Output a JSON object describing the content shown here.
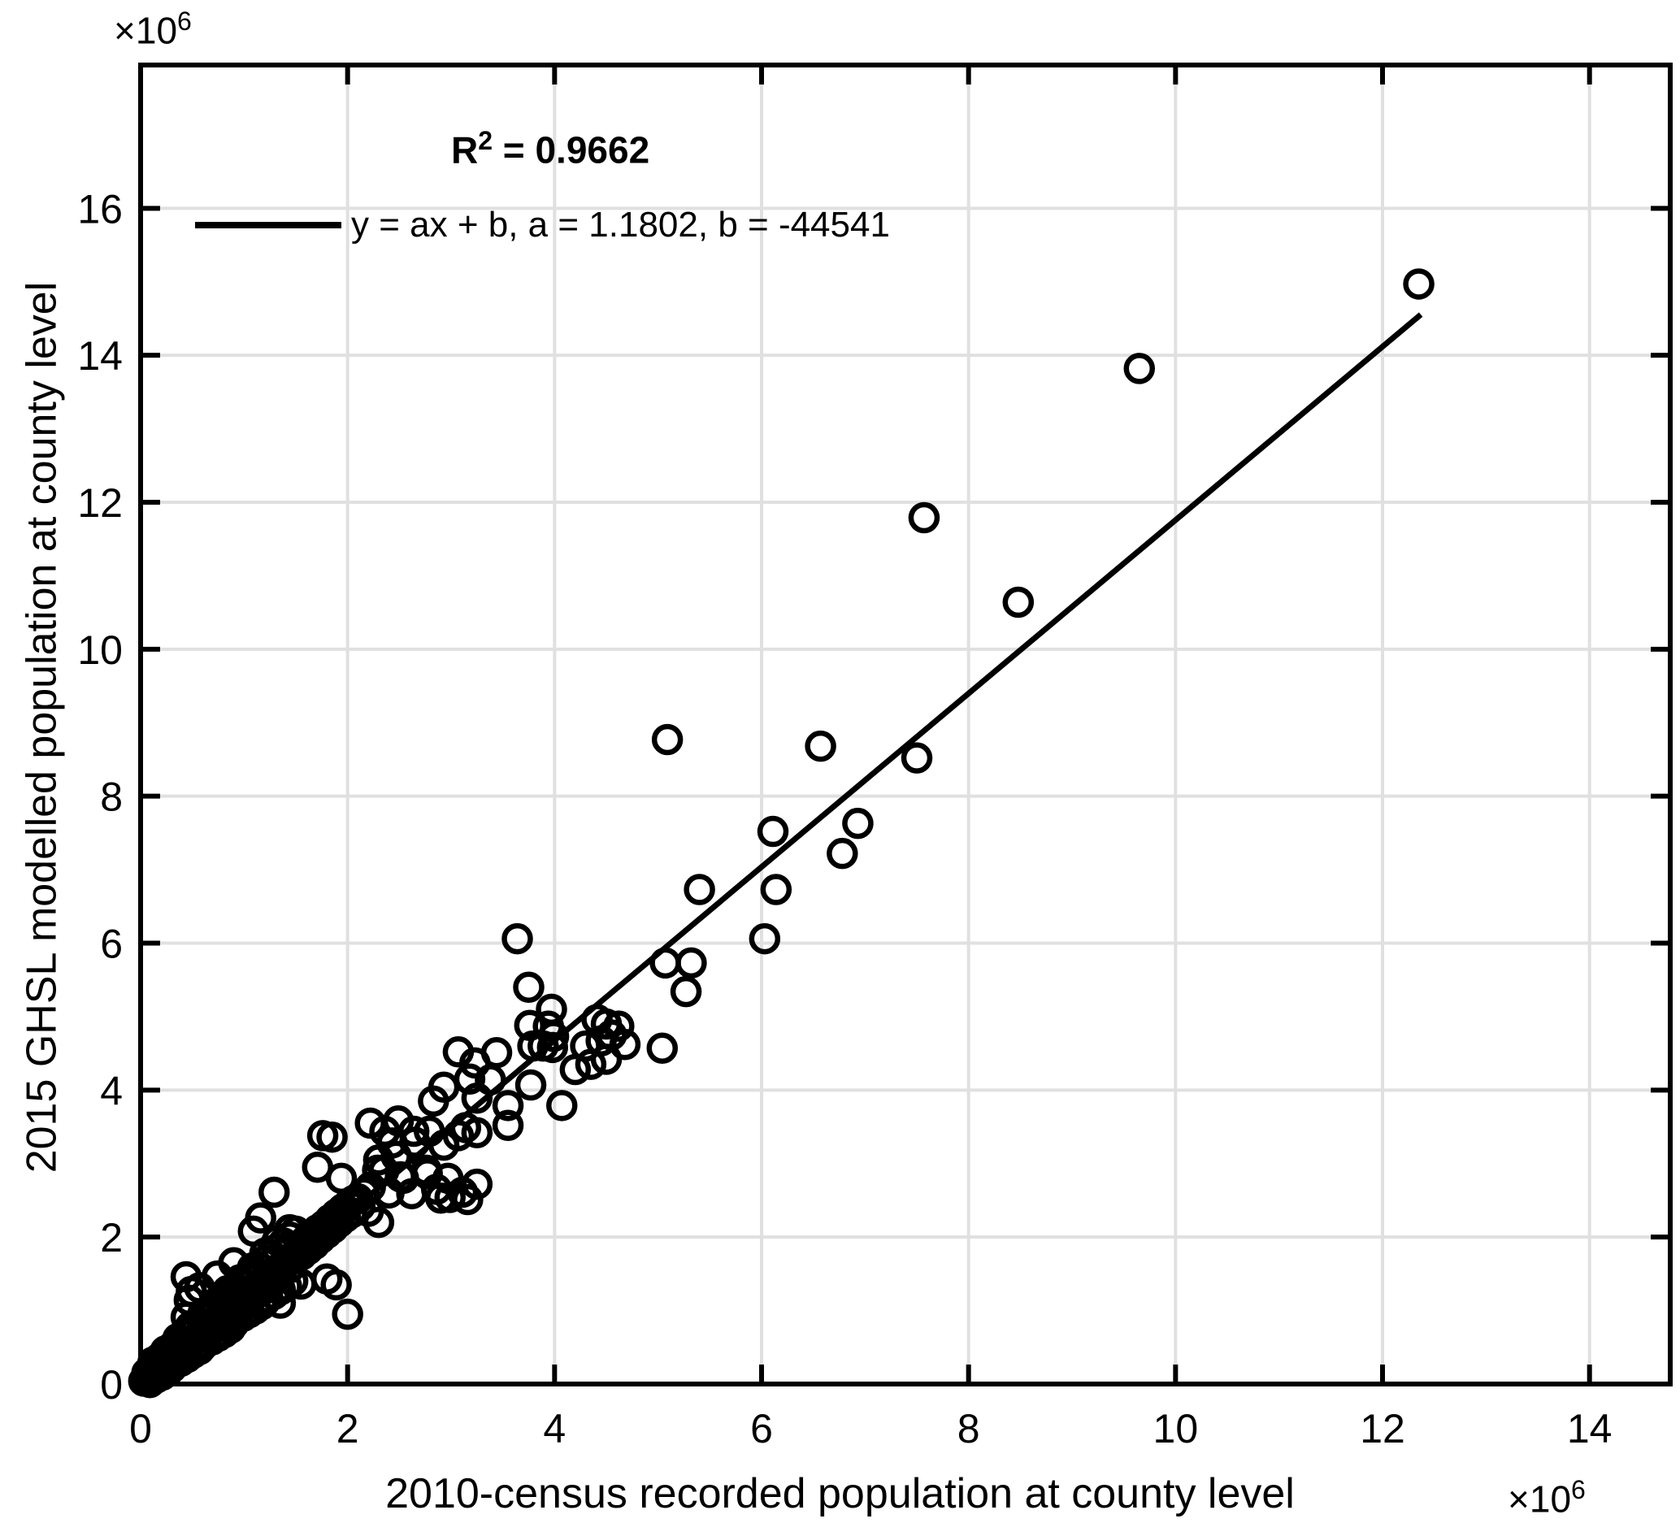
{
  "colors": {
    "background": "#ffffff",
    "axis": "#000000",
    "grid": "#e0e0e0",
    "marker": "#000000",
    "fit_line": "#000000",
    "text": "#000000"
  },
  "chart_data": {
    "type": "scatter",
    "xlabel": "2010-census recorded population at county level",
    "ylabel": "2015 GHSL modelled population at county level",
    "x_exponent": {
      "base": "×10",
      "sup": "6"
    },
    "y_exponent": {
      "base": "×10",
      "sup": "6"
    },
    "annotation_r2": {
      "base": "R",
      "sup": "2",
      "rest": " = 0.9662"
    },
    "legend_entry": "y = ax + b, a = 1.1802, b = -44541",
    "x_ticks": [
      0,
      2,
      4,
      6,
      8,
      10,
      12,
      14
    ],
    "y_ticks": [
      0,
      2,
      4,
      6,
      8,
      10,
      12,
      14,
      16
    ],
    "xlim": [
      0,
      14.78
    ],
    "ylim": [
      0,
      17.95
    ],
    "units_multiplier": 1000000,
    "grid": true,
    "legend_position": "top-left-inside",
    "fit_line": {
      "a": 1.1802,
      "b": -44541,
      "b_plot_units": -0.0445,
      "x_start": 0.05,
      "x_end": 12.37
    },
    "points": [
      [
        12.35,
        14.97
      ],
      [
        9.65,
        13.82
      ],
      [
        7.57,
        11.79
      ],
      [
        8.48,
        10.64
      ],
      [
        5.09,
        8.77
      ],
      [
        6.57,
        8.68
      ],
      [
        7.5,
        8.52
      ],
      [
        6.93,
        7.63
      ],
      [
        6.11,
        7.52
      ],
      [
        6.78,
        7.22
      ],
      [
        5.4,
        6.73
      ],
      [
        6.14,
        6.73
      ],
      [
        6.03,
        6.06
      ],
      [
        3.64,
        6.06
      ],
      [
        5.07,
        5.73
      ],
      [
        5.32,
        5.73
      ],
      [
        5.27,
        5.34
      ],
      [
        3.75,
        5.4
      ],
      [
        3.97,
        5.1
      ],
      [
        4.41,
        4.96
      ],
      [
        3.94,
        4.87
      ],
      [
        3.76,
        4.88
      ],
      [
        4.62,
        4.87
      ],
      [
        3.99,
        4.73
      ],
      [
        4.55,
        4.75
      ],
      [
        4.68,
        4.62
      ],
      [
        4.3,
        4.6
      ],
      [
        3.79,
        4.6
      ],
      [
        3.89,
        4.6
      ],
      [
        4.45,
        4.67
      ],
      [
        3.98,
        4.58
      ],
      [
        5.04,
        4.57
      ],
      [
        3.44,
        4.51
      ],
      [
        3.07,
        4.52
      ],
      [
        4.5,
        4.42
      ],
      [
        3.38,
        4.14
      ],
      [
        4.2,
        4.28
      ],
      [
        3.23,
        4.37
      ],
      [
        3.18,
        4.15
      ],
      [
        2.93,
        4.04
      ],
      [
        3.77,
        4.07
      ],
      [
        4.07,
        3.79
      ],
      [
        3.55,
        3.79
      ],
      [
        2.83,
        3.85
      ],
      [
        3.25,
        3.89
      ],
      [
        4.35,
        4.35
      ],
      [
        4.5,
        4.9
      ],
      [
        2.22,
        3.55
      ],
      [
        2.49,
        3.58
      ],
      [
        3.55,
        3.52
      ],
      [
        3.14,
        3.49
      ],
      [
        2.36,
        3.44
      ],
      [
        2.64,
        3.44
      ],
      [
        2.79,
        3.44
      ],
      [
        3.07,
        3.38
      ],
      [
        3.25,
        3.42
      ],
      [
        2.43,
        3.28
      ],
      [
        2.93,
        3.25
      ],
      [
        2.65,
        3.29
      ],
      [
        2.3,
        3.05
      ],
      [
        2.47,
        3.1
      ],
      [
        2.29,
        2.91
      ],
      [
        2.76,
        2.91
      ],
      [
        2.51,
        2.82
      ],
      [
        2.54,
        2.8
      ],
      [
        2.97,
        2.8
      ],
      [
        2.77,
        2.86
      ],
      [
        2.86,
        2.65
      ],
      [
        2.62,
        2.59
      ],
      [
        2.9,
        2.53
      ],
      [
        2.99,
        2.54
      ],
      [
        3.16,
        2.51
      ],
      [
        3.11,
        2.61
      ],
      [
        3.25,
        2.72
      ],
      [
        2.06,
        2.5
      ],
      [
        2.12,
        2.42
      ],
      [
        1.76,
        3.38
      ],
      [
        1.85,
        3.36
      ],
      [
        1.71,
        2.95
      ],
      [
        1.94,
        2.8
      ],
      [
        1.29,
        2.61
      ],
      [
        1.16,
        2.26
      ],
      [
        1.09,
        2.08
      ],
      [
        0.44,
        1.46
      ],
      [
        0.49,
        1.26
      ],
      [
        1.8,
        1.43
      ],
      [
        2.0,
        0.95
      ],
      [
        1.89,
        1.35
      ],
      [
        0.47,
        1.14
      ],
      [
        0.57,
        1.31
      ],
      [
        0.44,
        0.91
      ],
      [
        0.9,
        1.65
      ],
      [
        0.74,
        1.47
      ],
      [
        1.55,
        1.36
      ],
      [
        1.35,
        1.1
      ],
      [
        2.35,
        2.9
      ],
      [
        1.53,
        1.85
      ],
      [
        1.56,
        1.76
      ],
      [
        1.59,
        1.95
      ],
      [
        1.62,
        1.83
      ],
      [
        1.65,
        2.02
      ],
      [
        1.68,
        1.9
      ],
      [
        1.71,
        2.1
      ],
      [
        1.74,
        1.98
      ],
      [
        1.77,
        2.16
      ],
      [
        1.8,
        2.05
      ],
      [
        1.83,
        2.24
      ],
      [
        1.86,
        2.12
      ],
      [
        1.89,
        2.31
      ],
      [
        1.92,
        2.2
      ],
      [
        1.95,
        2.38
      ],
      [
        1.98,
        2.27
      ],
      [
        2.01,
        2.45
      ],
      [
        2.04,
        2.33
      ],
      [
        2.1,
        2.52
      ],
      [
        2.16,
        2.6
      ],
      [
        2.22,
        2.68
      ],
      [
        2.3,
        2.2
      ],
      [
        2.4,
        2.6
      ],
      [
        2.2,
        2.35
      ],
      [
        0.03,
        0.04
      ],
      [
        0.06,
        0.07
      ],
      [
        0.06,
        0.15
      ],
      [
        0.09,
        0.11
      ],
      [
        0.09,
        0.02
      ],
      [
        0.12,
        0.14
      ],
      [
        0.12,
        0.24
      ],
      [
        0.15,
        0.18
      ],
      [
        0.15,
        0.08
      ],
      [
        0.15,
        0.3
      ],
      [
        0.18,
        0.21
      ],
      [
        0.18,
        0.35
      ],
      [
        0.21,
        0.25
      ],
      [
        0.21,
        0.12
      ],
      [
        0.24,
        0.28
      ],
      [
        0.24,
        0.42
      ],
      [
        0.27,
        0.32
      ],
      [
        0.27,
        0.18
      ],
      [
        0.3,
        0.35
      ],
      [
        0.3,
        0.5
      ],
      [
        0.3,
        0.22
      ],
      [
        0.33,
        0.39
      ],
      [
        0.33,
        0.27
      ],
      [
        0.36,
        0.42
      ],
      [
        0.36,
        0.57
      ],
      [
        0.39,
        0.46
      ],
      [
        0.39,
        0.31
      ],
      [
        0.42,
        0.5
      ],
      [
        0.42,
        0.67
      ],
      [
        0.45,
        0.53
      ],
      [
        0.45,
        0.36
      ],
      [
        0.48,
        0.57
      ],
      [
        0.48,
        0.73
      ],
      [
        0.51,
        0.6
      ],
      [
        0.51,
        0.42
      ],
      [
        0.54,
        0.64
      ],
      [
        0.54,
        0.81
      ],
      [
        0.57,
        0.67
      ],
      [
        0.57,
        0.47
      ],
      [
        0.6,
        0.71
      ],
      [
        0.6,
        0.9
      ],
      [
        0.6,
        0.52
      ],
      [
        0.63,
        0.74
      ],
      [
        0.63,
        0.56
      ],
      [
        0.66,
        0.78
      ],
      [
        0.66,
        0.97
      ],
      [
        0.69,
        0.81
      ],
      [
        0.69,
        0.6
      ],
      [
        0.72,
        0.85
      ],
      [
        0.72,
        1.04
      ],
      [
        0.75,
        0.89
      ],
      [
        0.75,
        0.65
      ],
      [
        0.78,
        0.92
      ],
      [
        0.78,
        1.12
      ],
      [
        0.81,
        0.96
      ],
      [
        0.81,
        0.7
      ],
      [
        0.84,
        0.99
      ],
      [
        0.84,
        1.2
      ],
      [
        0.87,
        1.03
      ],
      [
        0.87,
        0.76
      ],
      [
        0.9,
        1.06
      ],
      [
        0.9,
        1.28
      ],
      [
        0.9,
        0.82
      ],
      [
        0.93,
        1.1
      ],
      [
        0.93,
        0.88
      ],
      [
        0.96,
        1.13
      ],
      [
        0.96,
        1.36
      ],
      [
        0.99,
        1.17
      ],
      [
        0.99,
        0.92
      ],
      [
        1.02,
        1.2
      ],
      [
        1.02,
        1.44
      ],
      [
        1.05,
        1.24
      ],
      [
        1.05,
        0.97
      ],
      [
        1.08,
        1.27
      ],
      [
        1.08,
        1.52
      ],
      [
        1.11,
        1.31
      ],
      [
        1.11,
        1.02
      ],
      [
        1.14,
        1.35
      ],
      [
        1.14,
        1.6
      ],
      [
        1.17,
        1.38
      ],
      [
        1.17,
        1.08
      ],
      [
        1.2,
        1.42
      ],
      [
        1.2,
        1.68
      ],
      [
        1.2,
        1.12
      ],
      [
        1.23,
        1.45
      ],
      [
        1.23,
        1.17
      ],
      [
        1.26,
        1.49
      ],
      [
        1.26,
        1.76
      ],
      [
        1.29,
        1.52
      ],
      [
        1.29,
        1.22
      ],
      [
        1.32,
        1.56
      ],
      [
        1.32,
        1.84
      ],
      [
        1.35,
        1.59
      ],
      [
        1.35,
        1.28
      ],
      [
        1.38,
        1.63
      ],
      [
        1.38,
        1.92
      ],
      [
        1.41,
        1.66
      ],
      [
        1.41,
        1.33
      ],
      [
        1.44,
        1.7
      ],
      [
        1.44,
        2.0
      ],
      [
        1.47,
        1.73
      ],
      [
        1.47,
        1.4
      ],
      [
        1.5,
        1.77
      ],
      [
        1.5,
        2.08
      ],
      [
        0.09,
        0.06
      ],
      [
        0.18,
        0.13
      ],
      [
        0.27,
        0.22
      ],
      [
        0.36,
        0.3
      ],
      [
        0.45,
        0.44
      ],
      [
        0.54,
        0.52
      ],
      [
        0.63,
        0.65
      ],
      [
        0.72,
        0.76
      ],
      [
        0.81,
        0.86
      ],
      [
        0.9,
        0.96
      ],
      [
        0.99,
        1.05
      ],
      [
        1.08,
        1.18
      ],
      [
        1.17,
        1.27
      ],
      [
        1.26,
        1.37
      ],
      [
        1.35,
        1.48
      ],
      [
        1.44,
        1.58
      ],
      [
        0.12,
        0.3
      ],
      [
        0.24,
        0.45
      ],
      [
        0.36,
        0.62
      ],
      [
        0.48,
        0.78
      ],
      [
        0.6,
        0.95
      ],
      [
        0.72,
        1.1
      ],
      [
        0.84,
        1.27
      ],
      [
        0.96,
        1.42
      ],
      [
        1.08,
        1.58
      ],
      [
        1.2,
        1.78
      ],
      [
        1.32,
        1.95
      ],
      [
        1.44,
        2.1
      ]
    ]
  }
}
